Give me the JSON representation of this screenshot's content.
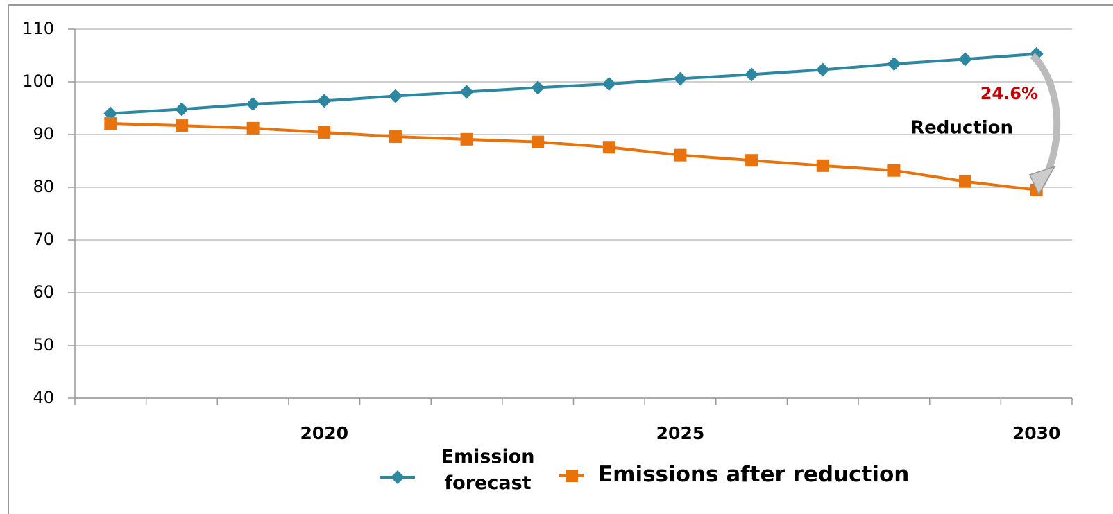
{
  "chart_data": {
    "type": "line",
    "categories": [
      null,
      null,
      null,
      "2020",
      null,
      null,
      null,
      null,
      "2025",
      null,
      null,
      null,
      null,
      "2030"
    ],
    "series": [
      {
        "name": "Emission forecast",
        "color": "#2e87a0",
        "marker": "diamond",
        "values": [
          94,
          94.8,
          95.8,
          96.4,
          97.3,
          98.1,
          98.9,
          99.6,
          100.6,
          101.4,
          102.3,
          103.4,
          104.3,
          105.3
        ]
      },
      {
        "name": "Emissions after reduction",
        "color": "#e8720c",
        "marker": "square",
        "values": [
          92.1,
          91.7,
          91.2,
          90.4,
          89.6,
          89.1,
          88.6,
          87.6,
          86.1,
          85.1,
          84.1,
          83.2,
          81.1,
          79.5
        ]
      }
    ],
    "ylim": [
      40,
      110
    ],
    "yticks": [
      40,
      50,
      60,
      70,
      80,
      90,
      100,
      110
    ],
    "grid": true,
    "annotations": [
      "24.6%",
      "Reduction"
    ],
    "legend": "bottom"
  }
}
